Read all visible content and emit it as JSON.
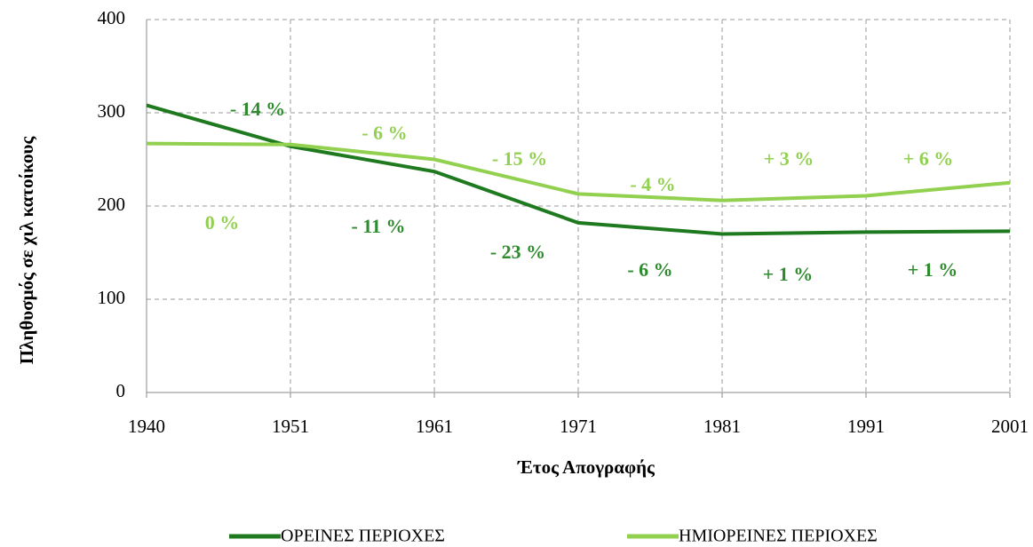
{
  "chart_data": {
    "type": "line",
    "xlabel": "Έτος Απογραφής",
    "ylabel": "Πληθυσμός σε χιλ κατοίκους",
    "categories": [
      "1940",
      "1951",
      "1961",
      "1971",
      "1981",
      "1991",
      "2001"
    ],
    "ylim": [
      0,
      400
    ],
    "yticks": [
      0,
      100,
      200,
      300,
      400
    ],
    "grid": true,
    "legend": "bottom",
    "series": [
      {
        "name": "ΟΡΕΙΝΕΣ ΠΕΡΙΟΧΕΣ",
        "color": "#1f7a1f",
        "label_color": "#2e8b2e",
        "values": [
          308,
          264,
          237,
          182,
          170,
          172,
          173
        ],
        "annotations": [
          "- 14 %",
          "- 11 %",
          "- 23 %",
          "- 6 %",
          "+ 1 %",
          "+ 1 %"
        ]
      },
      {
        "name": "ΗΜΙΟΡΕΙΝΕΣ ΠΕΡΙΟΧΕΣ",
        "color": "#92d050",
        "label_color": "#92d050",
        "values": [
          267,
          266,
          250,
          213,
          206,
          211,
          225
        ],
        "annotations": [
          "0 %",
          "- 6 %",
          "- 15 %",
          "- 4 %",
          "+ 3 %",
          "+ 6 %"
        ]
      }
    ]
  }
}
